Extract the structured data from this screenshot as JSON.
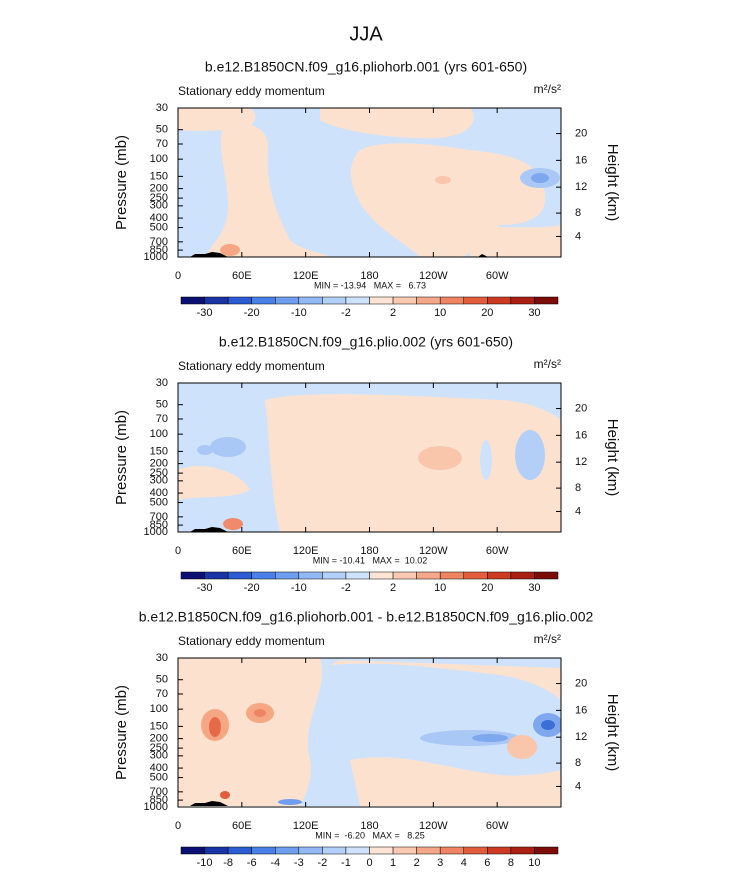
{
  "title": "JJA",
  "chart_data": [
    {
      "type": "contour",
      "title": "b.e12.B1850CN.f09_g16.pliohorb.001 (yrs 601-650)",
      "subtitle": "Stationary eddy momentum",
      "units": "m²/s²",
      "xlim": [
        0,
        360
      ],
      "xticks": [
        0,
        {
          "value": 60,
          "label": "60E"
        },
        {
          "value": 120,
          "label": "120E"
        },
        180,
        {
          "value": 240,
          "label": "120W"
        },
        {
          "value": 300,
          "label": "60W"
        }
      ],
      "ylabel": "Pressure (mb)",
      "ylim": [
        1000,
        30
      ],
      "yscale": "log",
      "yticks": [
        30,
        50,
        70,
        100,
        150,
        200,
        250,
        300,
        400,
        500,
        700,
        850,
        1000
      ],
      "y2label": "Height (km)",
      "y2ticks": [
        4,
        8,
        12,
        16,
        20
      ],
      "stats": "MIN = -13.94   MAX =   6.73",
      "colorbar": {
        "colors": [
          "#0a1172",
          "#1934a6",
          "#2b5cd4",
          "#4a7fe8",
          "#6f9df0",
          "#93b9f5",
          "#b3d0f8",
          "#cfe2fb",
          "#fde4d4",
          "#fac9b2",
          "#f5a78a",
          "#ef8462",
          "#e35d3d",
          "#cc3a22",
          "#aa1f12",
          "#7b0c07"
        ],
        "levels": [
          -30,
          null,
          -20,
          null,
          -10,
          null,
          -2,
          null,
          2,
          null,
          10,
          null,
          20,
          null,
          30
        ]
      }
    },
    {
      "type": "contour",
      "title": "b.e12.B1850CN.f09_g16.plio.002 (yrs 601-650)",
      "subtitle": "Stationary eddy momentum",
      "units": "m²/s²",
      "xlim": [
        0,
        360
      ],
      "xticks": [
        0,
        {
          "value": 60,
          "label": "60E"
        },
        {
          "value": 120,
          "label": "120E"
        },
        180,
        {
          "value": 240,
          "label": "120W"
        },
        {
          "value": 300,
          "label": "60W"
        }
      ],
      "ylabel": "Pressure (mb)",
      "ylim": [
        1000,
        30
      ],
      "yscale": "log",
      "yticks": [
        30,
        50,
        70,
        100,
        150,
        200,
        250,
        300,
        400,
        500,
        700,
        850,
        1000
      ],
      "y2label": "Height (km)",
      "y2ticks": [
        4,
        8,
        12,
        16,
        20
      ],
      "stats": "MIN = -10.41   MAX =  10.02",
      "colorbar": {
        "colors": [
          "#0a1172",
          "#1934a6",
          "#2b5cd4",
          "#4a7fe8",
          "#6f9df0",
          "#93b9f5",
          "#b3d0f8",
          "#cfe2fb",
          "#fde4d4",
          "#fac9b2",
          "#f5a78a",
          "#ef8462",
          "#e35d3d",
          "#cc3a22",
          "#aa1f12",
          "#7b0c07"
        ],
        "levels": [
          -30,
          null,
          -20,
          null,
          -10,
          null,
          -2,
          null,
          2,
          null,
          10,
          null,
          20,
          null,
          30
        ]
      }
    },
    {
      "type": "contour",
      "title": "b.e12.B1850CN.f09_g16.pliohorb.001 - b.e12.B1850CN.f09_g16.plio.002",
      "subtitle": "Stationary eddy momentum",
      "units": "m²/s²",
      "xlim": [
        0,
        360
      ],
      "xticks": [
        0,
        {
          "value": 60,
          "label": "60E"
        },
        {
          "value": 120,
          "label": "120E"
        },
        180,
        {
          "value": 240,
          "label": "120W"
        },
        {
          "value": 300,
          "label": "60W"
        }
      ],
      "ylabel": "Pressure (mb)",
      "ylim": [
        1000,
        30
      ],
      "yscale": "log",
      "yticks": [
        30,
        50,
        70,
        100,
        150,
        200,
        250,
        300,
        400,
        500,
        700,
        850,
        1000
      ],
      "y2label": "Height (km)",
      "y2ticks": [
        4,
        8,
        12,
        16,
        20
      ],
      "stats": "MIN =  -6.20   MAX =   8.25",
      "colorbar": {
        "colors": [
          "#0a1172",
          "#1934a6",
          "#2b5cd4",
          "#4a7fe8",
          "#6f9df0",
          "#93b9f5",
          "#b3d0f8",
          "#cfe2fb",
          "#fde4d4",
          "#fac9b2",
          "#f5a78a",
          "#ef8462",
          "#e35d3d",
          "#cc3a22",
          "#aa1f12",
          "#7b0c07"
        ],
        "levels": [
          -10,
          -8,
          -6,
          -4,
          -3,
          -2,
          -1,
          0,
          1,
          2,
          3,
          4,
          6,
          8,
          10
        ]
      }
    }
  ]
}
